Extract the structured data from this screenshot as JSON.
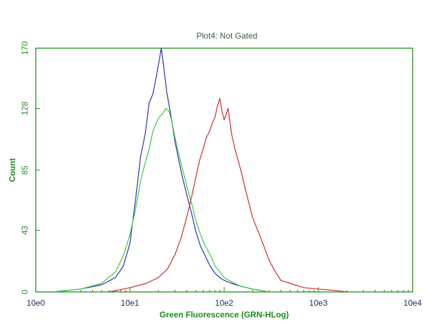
{
  "chart_data": {
    "type": "line",
    "title": "Plot4:  Not Gated",
    "xlabel": "Green Fluorescence (GRN-HLog)",
    "ylabel": "Count",
    "x_scale": "log",
    "xlim": [
      1,
      10000
    ],
    "ylim": [
      0,
      170
    ],
    "x_tick_labels": [
      "10e0",
      "10e1",
      "10e2",
      "10e3",
      "10e4"
    ],
    "y_tick_labels": [
      "0",
      "43",
      "85",
      "128",
      "170"
    ],
    "y_ticks": [
      0,
      43,
      85,
      128,
      170
    ],
    "grid": false,
    "series": [
      {
        "color": "#2b2bb8",
        "x": [
          1.5,
          3,
          5,
          7,
          8.5,
          10,
          11.5,
          13,
          14.5,
          16,
          17.5,
          19,
          20.5,
          21.5,
          23,
          24.5,
          26,
          28,
          30,
          33,
          36,
          40,
          45,
          50,
          56,
          63,
          71,
          80,
          90,
          100,
          120,
          150,
          200,
          300
        ],
        "y": [
          0,
          2,
          5,
          10,
          18,
          34,
          65,
          95,
          110,
          132,
          138,
          150,
          162,
          170,
          155,
          140,
          130,
          118,
          105,
          92,
          80,
          68,
          55,
          42,
          32,
          25,
          18,
          13,
          10,
          8,
          6,
          4,
          2,
          0
        ]
      },
      {
        "color": "#33cc33",
        "x": [
          1.5,
          3,
          5,
          7,
          8.5,
          10,
          11.5,
          13,
          14.5,
          16,
          17.5,
          19,
          20.5,
          22,
          24,
          26,
          28,
          30,
          33,
          36,
          40,
          45,
          50,
          56,
          63,
          71,
          80,
          90,
          100,
          120,
          150,
          200,
          300
        ],
        "y": [
          0,
          2,
          6,
          14,
          25,
          40,
          58,
          78,
          90,
          100,
          112,
          118,
          122,
          124,
          128,
          126,
          118,
          108,
          96,
          86,
          74,
          62,
          50,
          40,
          32,
          26,
          18,
          14,
          10,
          7,
          4,
          2,
          0
        ]
      },
      {
        "color": "#cc2a2a",
        "x": [
          6,
          10,
          15,
          20,
          25,
          30,
          35,
          40,
          45,
          50,
          55,
          60,
          65,
          70,
          75,
          80,
          85,
          90,
          95,
          100,
          105,
          110,
          120,
          130,
          150,
          170,
          200,
          250,
          300,
          350,
          400,
          500,
          700,
          1000,
          1500,
          2000
        ],
        "y": [
          0,
          3,
          6,
          10,
          16,
          26,
          38,
          52,
          66,
          80,
          92,
          100,
          108,
          112,
          118,
          122,
          130,
          135,
          126,
          120,
          124,
          128,
          110,
          100,
          85,
          70,
          52,
          36,
          22,
          14,
          8,
          6,
          3,
          2,
          1,
          0
        ]
      }
    ]
  }
}
